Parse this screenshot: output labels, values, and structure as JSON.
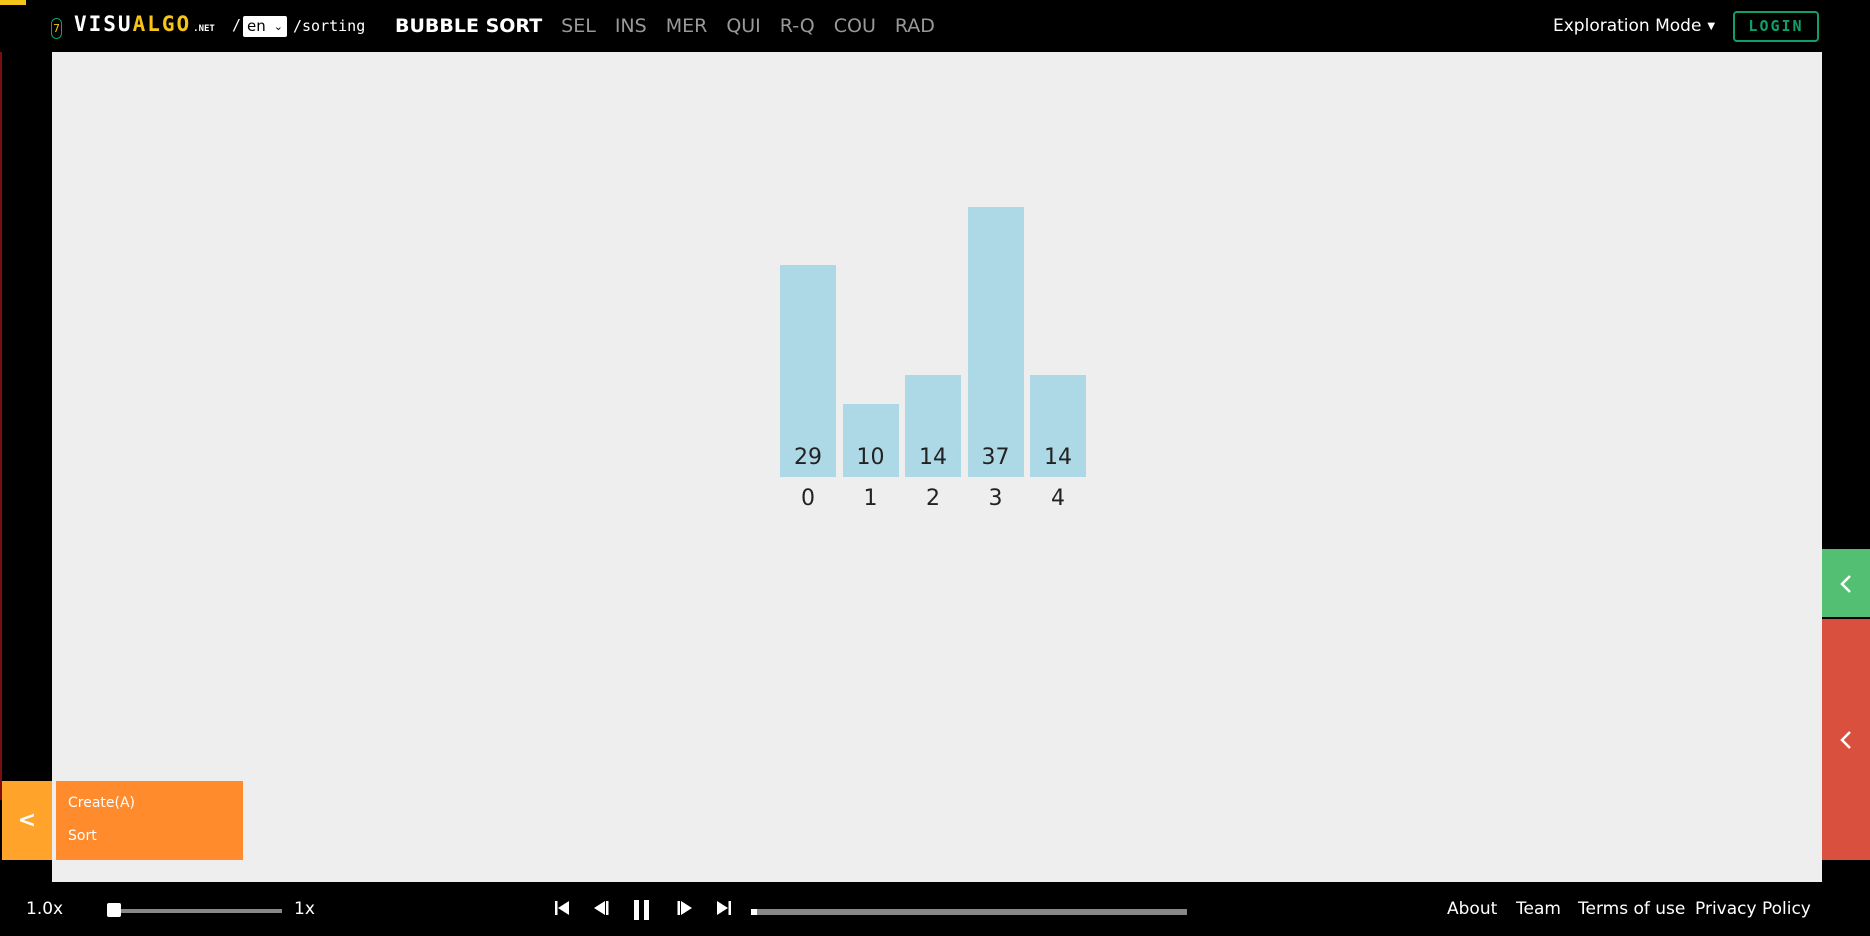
{
  "header": {
    "visit_count": "7",
    "logo_part1": "VISU",
    "logo_part2": "ALGO",
    "logo_suffix": ".NET",
    "slash": "/",
    "language": "en",
    "path": "/sorting",
    "nav": [
      "BUBBLE SORT",
      "SEL",
      "INS",
      "MER",
      "QUI",
      "R-Q",
      "COU",
      "RAD"
    ],
    "active_nav": "BUBBLE SORT",
    "mode": "Exploration Mode",
    "login": "LOGIN"
  },
  "visualization": {
    "values": [
      29,
      10,
      14,
      37,
      14
    ],
    "indices": [
      "0",
      "1",
      "2",
      "3",
      "4"
    ],
    "bar_color": "#add8e6"
  },
  "side_tabs": {
    "upper_icon": "chevron-left-icon",
    "lower_icon": "chevron-left-icon"
  },
  "menu": {
    "toggle": "<",
    "items": [
      "Create(A)",
      "Sort"
    ]
  },
  "controls": {
    "speed": "1.0x",
    "speed_max": "1x",
    "speed_fraction": 0.0,
    "progress_fraction": 0.0
  },
  "footer": {
    "links": [
      "About",
      "Team",
      "Terms of use",
      "Privacy Policy"
    ]
  }
}
